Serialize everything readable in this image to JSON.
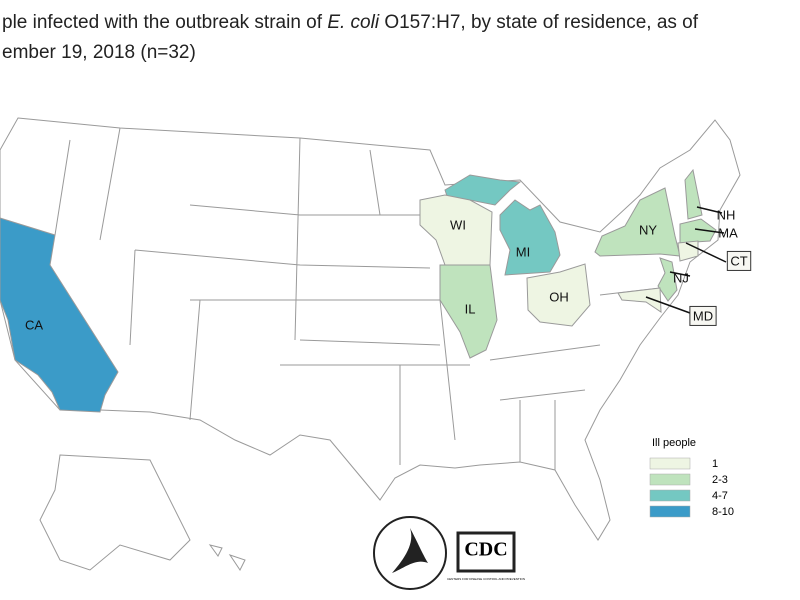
{
  "title": {
    "lines": [
      [
        {
          "text": "ple infected with the outbreak strain of "
        },
        {
          "text": "E. coli",
          "italic": true
        },
        {
          "text": " O157:H7, by state of residence, as of"
        }
      ],
      [
        {
          "text": "ember 19, 2018 (n=32)"
        }
      ]
    ]
  },
  "map": {
    "states": [
      {
        "label": "CA",
        "color": "#3b9bc8"
      },
      {
        "label": "MI",
        "color": "#74c8c2"
      },
      {
        "label": "WI",
        "color": "#eef5e3"
      },
      {
        "label": "IL",
        "color": "#bfe3bd"
      },
      {
        "label": "OH",
        "color": "#eef5e3"
      },
      {
        "label": "NY",
        "color": "#bfe3bd"
      },
      {
        "label": "NH",
        "color": "#bfe3bd"
      },
      {
        "label": "MA",
        "color": "#bfe3bd"
      },
      {
        "label": "CT",
        "color": "#eef5e3",
        "boxed": true
      },
      {
        "label": "NJ",
        "color": "#bfe3bd"
      },
      {
        "label": "MD",
        "color": "#eef5e3",
        "boxed": true
      }
    ]
  },
  "legend": {
    "title": "Ill people",
    "items": [
      {
        "label": "1",
        "color": "#eef5e3"
      },
      {
        "label": "2-3",
        "color": "#bfe3bd"
      },
      {
        "label": "4-7",
        "color": "#74c8c2"
      },
      {
        "label": "8-10",
        "color": "#3b9bc8"
      }
    ]
  },
  "logos": {
    "cdc": "CDC",
    "cdc_subtitle": "CENTERS FOR DISEASE CONTROL AND PREVENTION"
  }
}
